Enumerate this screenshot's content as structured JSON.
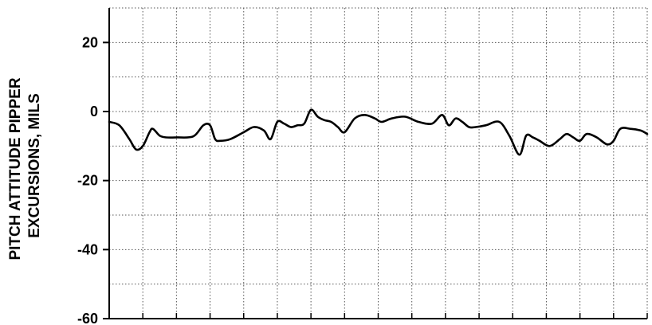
{
  "chart_data": {
    "type": "line",
    "title": "",
    "ylabel_lines": [
      "PITCH ATTITUDE PIPPER",
      "EXCURSIONS, MILS"
    ],
    "xlabel": "",
    "ylim": [
      -60,
      30
    ],
    "yticks": [
      20,
      0,
      -20,
      -40,
      -60
    ],
    "ytick_labels": [
      "20",
      "0",
      "-20",
      "-40",
      "-60"
    ],
    "xlim": [
      0,
      16
    ],
    "grid": true,
    "line_color": "#000000",
    "grid_color": "#555555",
    "series": [
      {
        "x": [
          0,
          0.3,
          0.6,
          0.8,
          1.0,
          1.2,
          1.3,
          1.5,
          1.7,
          2.0,
          2.5,
          2.8,
          3.0,
          3.15,
          3.3,
          3.6,
          4.0,
          4.3,
          4.6,
          4.8,
          5.0,
          5.2,
          5.4,
          5.6,
          5.8,
          6.0,
          6.2,
          6.4,
          6.6,
          6.8,
          7.0,
          7.3,
          7.6,
          7.9,
          8.1,
          8.4,
          8.8,
          9.2,
          9.6,
          9.9,
          10.1,
          10.3,
          10.5,
          10.7,
          10.9,
          11.2,
          11.6,
          11.9,
          12.2,
          12.4,
          12.6,
          12.8,
          13.1,
          13.4,
          13.6,
          13.8,
          14.0,
          14.2,
          14.5,
          14.8,
          15.0,
          15.2,
          15.5,
          15.8,
          16.0
        ],
        "y": [
          -3,
          -4,
          -8,
          -11,
          -10,
          -6,
          -5,
          -7,
          -7.5,
          -7.5,
          -7.2,
          -4,
          -4,
          -8,
          -8.5,
          -8,
          -6,
          -4.5,
          -5.5,
          -8,
          -3,
          -3.5,
          -4.5,
          -4,
          -3.5,
          0.5,
          -1.5,
          -2.5,
          -3,
          -4.5,
          -6,
          -2,
          -1,
          -2,
          -3,
          -2,
          -1.5,
          -3,
          -3.5,
          -1,
          -4,
          -2,
          -3,
          -4.5,
          -4.5,
          -4,
          -3,
          -7,
          -12.5,
          -7,
          -7.5,
          -8.5,
          -10,
          -8,
          -6.5,
          -7.5,
          -8.5,
          -6.5,
          -7.5,
          -9.5,
          -8.5,
          -5,
          -5,
          -5.5,
          -6.5
        ]
      }
    ]
  }
}
